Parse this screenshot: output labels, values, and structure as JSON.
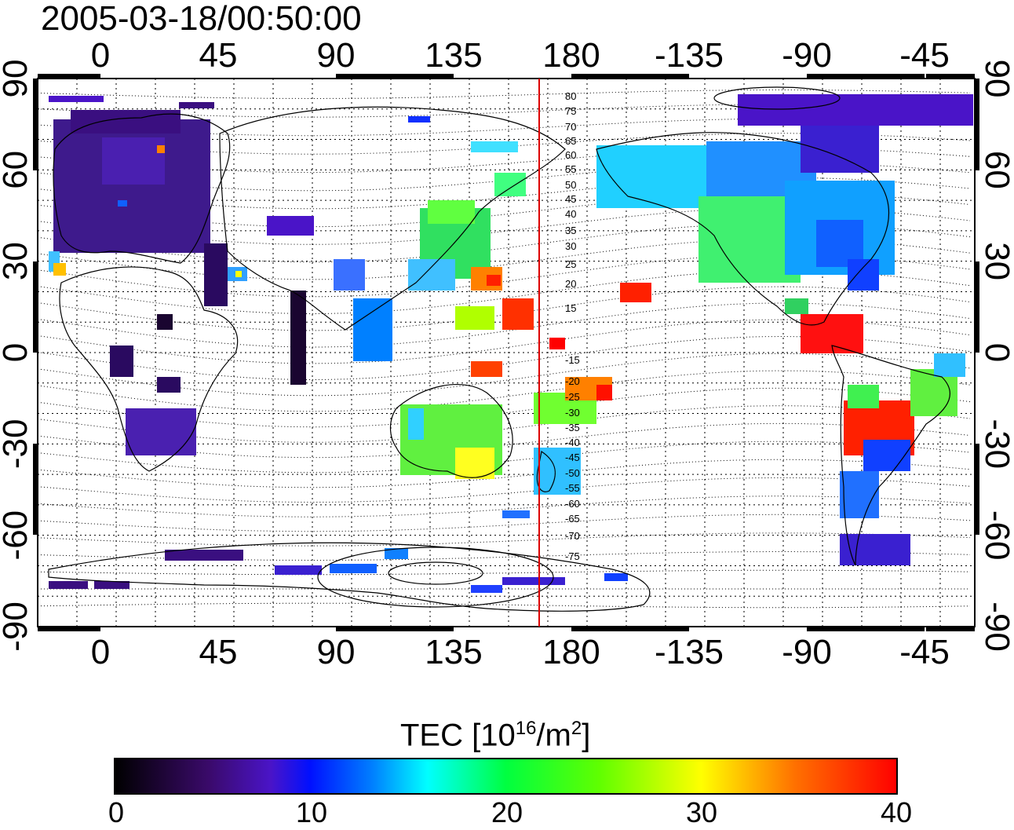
{
  "timestamp": "2005-03-18/00:50:00",
  "top_lon_labels": [
    "0",
    "45",
    "90",
    "135",
    "180",
    "-135",
    "-90",
    "-45"
  ],
  "bottom_lon_labels": [
    "0",
    "45",
    "90",
    "135",
    "180",
    "-135",
    "-90",
    "-45"
  ],
  "left_lat_labels": [
    "90",
    "60",
    "30",
    "0",
    "-30",
    "-60",
    "-90"
  ],
  "right_lat_labels": [
    "90",
    "60",
    "30",
    "0",
    "-30",
    "-60",
    "-90"
  ],
  "maglat_labels": [
    "80",
    "75",
    "70",
    "65",
    "60",
    "55",
    "50",
    "45",
    "40",
    "35",
    "30",
    "25",
    "20",
    "15",
    "-15",
    "-20",
    "-25",
    "-30",
    "-35",
    "-40",
    "-45",
    "-50",
    "-55",
    "-60",
    "-65",
    "-70",
    "-75"
  ],
  "colorbar": {
    "title_prefix": "TEC  [10",
    "title_exp1": "16",
    "title_mid": "/m",
    "title_exp2": "2",
    "title_suffix": "]",
    "ticks": [
      "0",
      "10",
      "20",
      "30",
      "40"
    ],
    "range": [
      0,
      40
    ]
  },
  "meridian_line": {
    "lon": 168,
    "color": "#dd0000"
  },
  "colormap": [
    "#000000",
    "#3a0a6a",
    "#4a14c8",
    "#0010ff",
    "#0080ff",
    "#00ffff",
    "#00ff60",
    "#40ff00",
    "#c0ff00",
    "#ffff00",
    "#ff8000",
    "#ff0000"
  ]
}
